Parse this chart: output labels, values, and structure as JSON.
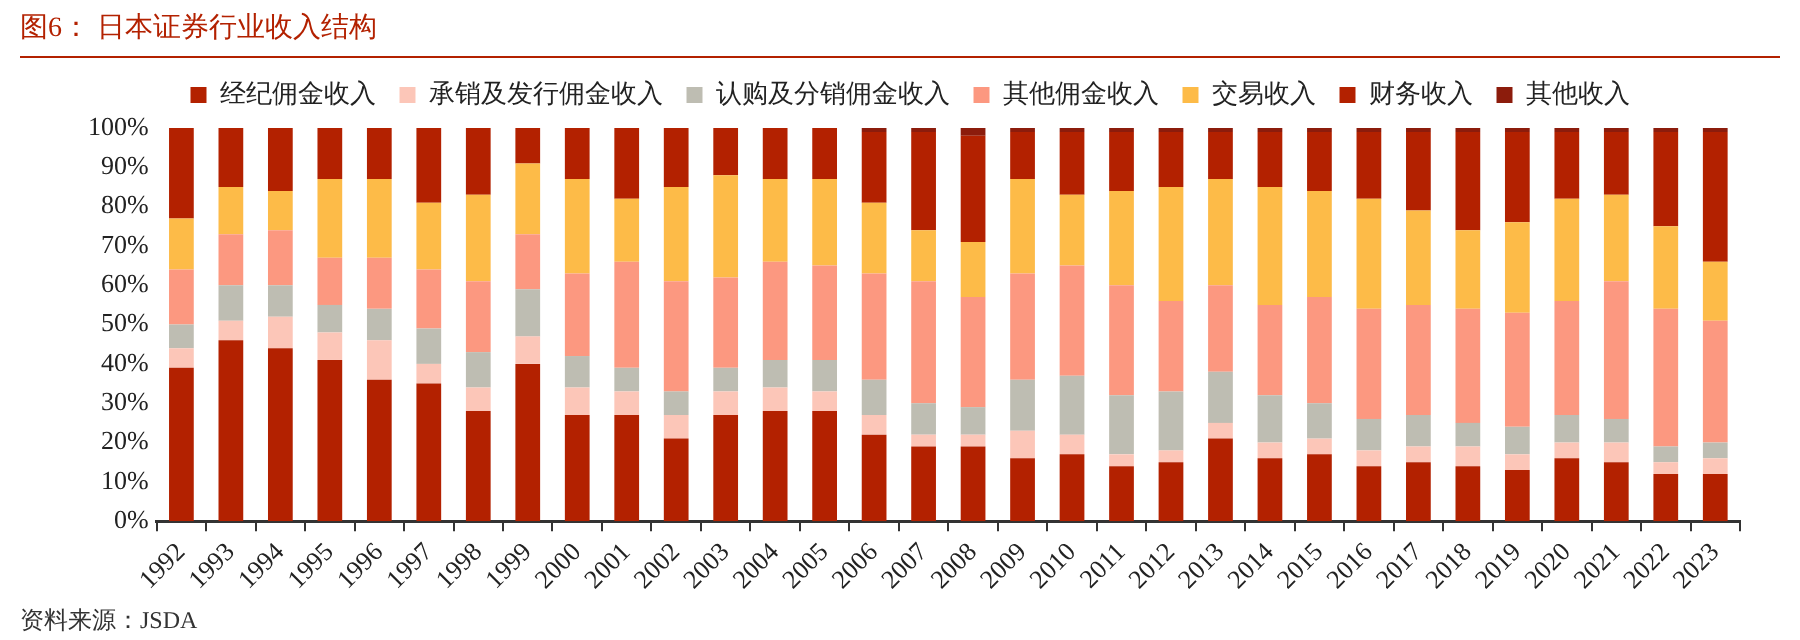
{
  "chart_data": {
    "type": "bar",
    "stacked": true,
    "title": "图6：  日本证券行业收入结构",
    "annotations": [
      "资料来源：JSDA"
    ],
    "categories": [
      "1992",
      "1993",
      "1994",
      "1995",
      "1996",
      "1997",
      "1998",
      "1999",
      "2000",
      "2001",
      "2002",
      "2003",
      "2004",
      "2005",
      "2006",
      "2007",
      "2008",
      "2009",
      "2010",
      "2011",
      "2012",
      "2013",
      "2014",
      "2015",
      "2016",
      "2017",
      "2018",
      "2019",
      "2020",
      "2021",
      "2022",
      "2023"
    ],
    "ylim": [
      0,
      100
    ],
    "yticks": [
      {
        "value": 0,
        "label": "0%"
      },
      {
        "value": 10,
        "label": "10%"
      },
      {
        "value": 20,
        "label": "20%"
      },
      {
        "value": 30,
        "label": "30%"
      },
      {
        "value": 40,
        "label": "40%"
      },
      {
        "value": 50,
        "label": "50%"
      },
      {
        "value": 60,
        "label": "60%"
      },
      {
        "value": 70,
        "label": "70%"
      },
      {
        "value": 80,
        "label": "80%"
      },
      {
        "value": 90,
        "label": "90%"
      },
      {
        "value": 100,
        "label": "100%"
      }
    ],
    "grid": false,
    "legend": "top",
    "series": [
      {
        "name": "经纪佣金收入",
        "color": "#b32100",
        "values": [
          39,
          46,
          44,
          41,
          36,
          35,
          28,
          40,
          27,
          27,
          21,
          27,
          28,
          28,
          22,
          19,
          19,
          16,
          17,
          14,
          15,
          21,
          16,
          17,
          14,
          15,
          14,
          13,
          16,
          15,
          12,
          12
        ]
      },
      {
        "name": "承销及发行佣金收入",
        "color": "#fcc6b8",
        "values": [
          5,
          5,
          8,
          7,
          10,
          5,
          6,
          7,
          7,
          6,
          6,
          6,
          6,
          5,
          5,
          3,
          3,
          7,
          5,
          3,
          3,
          4,
          4,
          4,
          4,
          4,
          5,
          4,
          4,
          5,
          3,
          4
        ]
      },
      {
        "name": "认购及分销佣金收入",
        "color": "#bebdb2",
        "values": [
          6,
          9,
          8,
          7,
          8,
          9,
          9,
          12,
          8,
          6,
          6,
          6,
          7,
          8,
          9,
          8,
          7,
          13,
          15,
          15,
          15,
          13,
          12,
          9,
          8,
          8,
          6,
          7,
          7,
          6,
          4,
          4
        ]
      },
      {
        "name": "其他佣金收入",
        "color": "#fc9880",
        "values": [
          14,
          13,
          14,
          12,
          13,
          15,
          18,
          14,
          21,
          27,
          28,
          23,
          25,
          24,
          27,
          31,
          28,
          27,
          28,
          28,
          23,
          22,
          23,
          27,
          28,
          28,
          29,
          29,
          29,
          35,
          35,
          31
        ]
      },
      {
        "name": "交易收入",
        "color": "#fdbb48",
        "values": [
          13,
          12,
          10,
          20,
          20,
          17,
          22,
          18,
          24,
          16,
          24,
          26,
          21,
          22,
          18,
          13,
          14,
          24,
          18,
          24,
          29,
          27,
          30,
          27,
          28,
          24,
          20,
          23,
          26,
          22,
          21,
          15
        ]
      },
      {
        "name": "财务收入",
        "color": "#b32100",
        "values": [
          23,
          15,
          16,
          13,
          13,
          19,
          17,
          9,
          13,
          18,
          15,
          12,
          13,
          13,
          18,
          25,
          27,
          12,
          16,
          15,
          14,
          12,
          14,
          15,
          17,
          20,
          25,
          23,
          17,
          16,
          24,
          33
        ]
      },
      {
        "name": "其他收入",
        "color": "#8c1c0c",
        "values": [
          0,
          0,
          0,
          0,
          0,
          0,
          0,
          0,
          0,
          0,
          0,
          0,
          0,
          0,
          1,
          1,
          2,
          1,
          1,
          1,
          1,
          1,
          1,
          1,
          1,
          1,
          1,
          1,
          1,
          1,
          1,
          1
        ]
      }
    ]
  }
}
